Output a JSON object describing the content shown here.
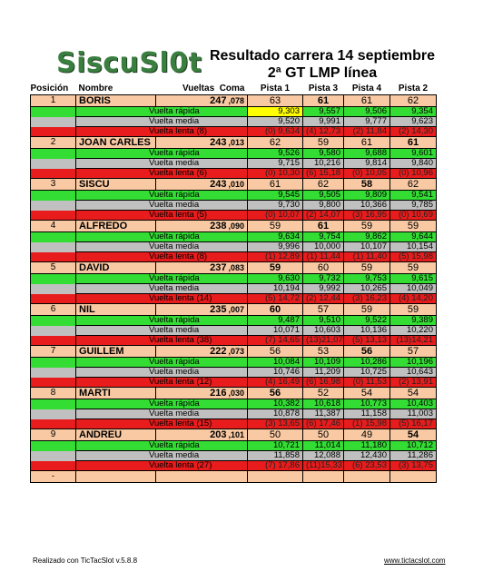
{
  "logo": "SiscuSl0t",
  "title_line1": "Resultado carrera 14 septiembre",
  "title_line2": "2ª GT LMP línea",
  "headers": {
    "pos": "Posición",
    "nombre": "Nombre",
    "vueltas": "Vueltas",
    "coma": "Coma",
    "p1": "Pista 1",
    "p3": "Pista 3",
    "p4": "Pista 4",
    "p2": "Pista 2"
  },
  "rows": [
    {
      "pos": "1",
      "name": "BORIS",
      "vueltas": "247",
      "coma": ",078",
      "laps": [
        "63",
        "61",
        "61",
        "62"
      ],
      "bold": [
        false,
        true,
        false,
        false
      ],
      "rapida_label": "Vuelta rápida",
      "rapida": [
        "9,303",
        "9,557",
        "9,506",
        "9,354"
      ],
      "media_label": "Vuelta media",
      "media": [
        "9,520",
        "9,991",
        "9,777",
        "9,623"
      ],
      "lenta_label": "Vuelta  lenta (8)",
      "lenta": [
        "(0)   9,634",
        "(4)  12,73",
        "(2)  11,84",
        "(2)  14,30"
      ]
    },
    {
      "pos": "2",
      "name": "JOAN CARLES",
      "vueltas": "243",
      "coma": ",013",
      "laps": [
        "62",
        "59",
        "61",
        "61"
      ],
      "bold": [
        false,
        false,
        false,
        true
      ],
      "rapida_label": "Vuelta rápida",
      "rapida": [
        "9,526",
        "9,580",
        "9,688",
        "9,601"
      ],
      "media_label": "Vuelta media",
      "media": [
        "9,715",
        "10,216",
        "9,814",
        "9,840"
      ],
      "lenta_label": "Vuelta  lenta (6)",
      "lenta": [
        "(0)  10,30",
        "(6)  15,18",
        "(0)  10,05",
        "(0)  10,96"
      ]
    },
    {
      "pos": "3",
      "name": "SISCU",
      "vueltas": "243",
      "coma": ",010",
      "laps": [
        "61",
        "62",
        "58",
        "62"
      ],
      "bold": [
        false,
        false,
        true,
        false
      ],
      "rapida_label": "Vuelta rápida",
      "rapida": [
        "9,545",
        "9,505",
        "9,809",
        "9,541"
      ],
      "media_label": "Vuelta media",
      "media": [
        "9,730",
        "9,800",
        "10,366",
        "9,785"
      ],
      "lenta_label": "Vuelta  lenta (5)",
      "lenta": [
        "(0)  10,07",
        "(2)  14,07",
        "(3)  16,95",
        "(0)  10,69"
      ]
    },
    {
      "pos": "4",
      "name": "ALFREDO",
      "vueltas": "238",
      "coma": ",090",
      "laps": [
        "59",
        "61",
        "59",
        "59"
      ],
      "bold": [
        false,
        true,
        false,
        false
      ],
      "rapida_label": "Vuelta rápida",
      "rapida": [
        "9,634",
        "9,754",
        "9,862",
        "9,644"
      ],
      "media_label": "Vuelta media",
      "media": [
        "9,996",
        "10,000",
        "10,107",
        "10,154"
      ],
      "lenta_label": "Vuelta  lenta (8)",
      "lenta": [
        "(1)  12,89",
        "(1)  11,44",
        "(1)  11,40",
        "(5)  15,98"
      ]
    },
    {
      "pos": "5",
      "name": "DAVID",
      "vueltas": "237",
      "coma": ",083",
      "laps": [
        "59",
        "60",
        "59",
        "59"
      ],
      "bold": [
        true,
        false,
        false,
        false
      ],
      "rapida_label": "Vuelta rápida",
      "rapida": [
        "9,630",
        "9,732",
        "9,753",
        "9,615"
      ],
      "media_label": "Vuelta media",
      "media": [
        "10,194",
        "9,992",
        "10,265",
        "10,049"
      ],
      "lenta_label": "Vuelta  lenta (14)",
      "lenta": [
        "(5)  14,72",
        "(2)  12,44",
        "(3)  16,23",
        "(4)  14,20"
      ]
    },
    {
      "pos": "6",
      "name": "NIL",
      "vueltas": "235",
      "coma": ",007",
      "laps": [
        "60",
        "57",
        "59",
        "59"
      ],
      "bold": [
        true,
        false,
        false,
        false
      ],
      "rapida_label": "Vuelta rápida",
      "rapida": [
        "9,487",
        "9,510",
        "9,522",
        "9,389"
      ],
      "media_label": "Vuelta media",
      "media": [
        "10,071",
        "10,603",
        "10,136",
        "10,220"
      ],
      "lenta_label": "Vuelta  lenta (38)",
      "lenta": [
        "(7)  14,65",
        "(13)21,07",
        "(5)  13,13",
        "(13)14,21"
      ]
    },
    {
      "pos": "7",
      "name": "GUILLEM",
      "vueltas": "222",
      "coma": ",073",
      "laps": [
        "56",
        "53",
        "56",
        "57"
      ],
      "bold": [
        false,
        false,
        true,
        false
      ],
      "rapida_label": "Vuelta rápida",
      "rapida": [
        "10,084",
        "10,109",
        "10,286",
        "10,196"
      ],
      "media_label": "Vuelta media",
      "media": [
        "10,746",
        "11,209",
        "10,725",
        "10,643"
      ],
      "lenta_label": "Vuelta  lenta (12)",
      "lenta": [
        "(4)  16,49",
        "(6)  16,98",
        "(0)  11,53",
        "(2)  13,91"
      ]
    },
    {
      "pos": "8",
      "name": "MARTI",
      "vueltas": "216",
      "coma": ",030",
      "laps": [
        "56",
        "52",
        "54",
        "54"
      ],
      "bold": [
        true,
        false,
        false,
        false
      ],
      "rapida_label": "Vuelta rápida",
      "rapida": [
        "10,382",
        "10,618",
        "10,773",
        "10,403"
      ],
      "media_label": "Vuelta media",
      "media": [
        "10,878",
        "11,387",
        "11,158",
        "11,003"
      ],
      "lenta_label": "Vuelta  lenta (15)",
      "lenta": [
        "(3)  13,65",
        "(6)  17,46",
        "(1)  15,98",
        "(5)  16,17"
      ]
    },
    {
      "pos": "9",
      "name": "ANDREU",
      "vueltas": "203",
      "coma": ",101",
      "laps": [
        "50",
        "50",
        "49",
        "54"
      ],
      "bold": [
        false,
        false,
        false,
        true
      ],
      "rapida_label": "Vuelta rápida",
      "rapida": [
        "10,721",
        "11,014",
        "11,180",
        "10,712"
      ],
      "media_label": "Vuelta media",
      "media": [
        "11,858",
        "12,088",
        "12,430",
        "11,286"
      ],
      "lenta_label": "Vuelta  lenta (27)",
      "lenta": [
        "(7)  17,86",
        "(11)15,33",
        "(6)  23,53",
        "(3)  13,75"
      ]
    }
  ],
  "end_row": "-",
  "footer_left": "Realizado con TicTacSlot v.5.8.8",
  "footer_right": "www.tictacslot.com",
  "colors": {
    "driver_row": "#f9c9a3",
    "rapida": "#33dd33",
    "media": "#c0c0c0",
    "lenta": "#e81c1c",
    "best_lap": "#ffff00"
  }
}
